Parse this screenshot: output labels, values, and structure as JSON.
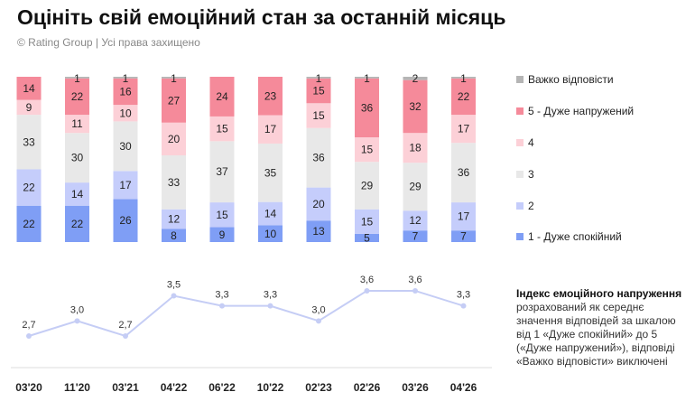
{
  "title": "Оцініть свій емоційний стан за останній місяць",
  "subtitle": "© Rating Group | Усі права захищено",
  "note": {
    "title": "Індекс емоційного напруження",
    "text": "розрахований як середнє значення відповідей за шкалою від 1 «Дуже спокійний» до 5 («Дуже напружений»), відповіді «Важко відповісти» виключені"
  },
  "chart_data": [
    {
      "type": "bar",
      "stacked": true,
      "categories": [
        "03'20",
        "11'20",
        "03'21",
        "04'22",
        "06'22",
        "10'22",
        "02'23",
        "02'26",
        "03'26",
        "04'26"
      ],
      "legend_position": "right",
      "series": [
        {
          "name": "1 - Дуже спокійний",
          "color": "#7f9ef5",
          "values": [
            22,
            22,
            26,
            8,
            9,
            10,
            13,
            5,
            7,
            7
          ]
        },
        {
          "name": "2",
          "color": "#c5cdfb",
          "values": [
            22,
            14,
            17,
            12,
            15,
            14,
            20,
            15,
            12,
            17
          ]
        },
        {
          "name": "3",
          "color": "#e8e8e8",
          "values": [
            33,
            30,
            30,
            33,
            37,
            35,
            36,
            29,
            29,
            36
          ]
        },
        {
          "name": "4",
          "color": "#fcd0d7",
          "values": [
            9,
            11,
            10,
            20,
            15,
            17,
            15,
            15,
            18,
            17
          ]
        },
        {
          "name": "5 - Дуже напружений",
          "color": "#f58a9a",
          "values": [
            14,
            22,
            16,
            27,
            24,
            23,
            15,
            36,
            32,
            22
          ]
        },
        {
          "name": "Важко відповісти",
          "color": "#b5b5b5",
          "values": [
            null,
            1,
            1,
            1,
            null,
            null,
            1,
            1,
            2,
            1
          ]
        }
      ]
    },
    {
      "type": "line",
      "categories": [
        "03'20",
        "11'20",
        "03'21",
        "04'22",
        "06'22",
        "10'22",
        "02'23",
        "02'26",
        "03'26",
        "04'26"
      ],
      "values": [
        2.7,
        3.0,
        2.7,
        3.5,
        3.3,
        3.3,
        3.0,
        3.6,
        3.6,
        3.3
      ],
      "labels": [
        "2,7",
        "3,0",
        "2,7",
        "3,5",
        "3,3",
        "3,3",
        "3,0",
        "3,6",
        "3,6",
        "3,3"
      ],
      "color": "#c5cdf5"
    }
  ]
}
